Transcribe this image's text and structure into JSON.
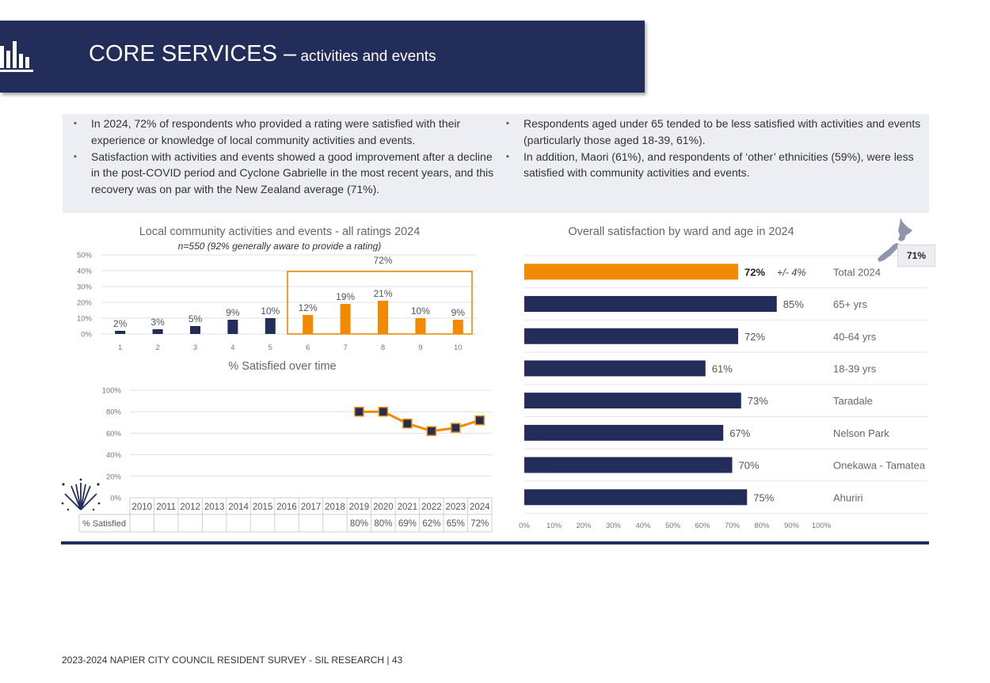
{
  "header": {
    "title_main": "CORE SERVICES –",
    "title_sub": " activities and events",
    "icon": "bar-chart-icon"
  },
  "bullets": {
    "left": [
      "In 2024, 72% of respondents who provided a rating were satisfied with their experience or knowledge of local community activities and events.",
      "Satisfaction with activities and events showed a good improvement after a decline in the post-COVID period and Cyclone Gabrielle in the most recent years, and this recovery was on par with the New Zealand average (71%)."
    ],
    "right": [
      "Respondents aged under 65 tended to be less satisfied with activities and events (particularly those aged 18-39, 61%).",
      "In addition, Maori (61%), and respondents of ‘other’ ethnicities (59%), were less satisfied with community activities and events."
    ]
  },
  "nz_badge": {
    "icon": "new-zealand-map-icon",
    "value": "71%"
  },
  "decoration": {
    "icon": "fireworks-icon"
  },
  "footer": "2023-2024 NAPIER CITY COUNCIL RESIDENT SURVEY - SIL RESEARCH | 43",
  "colors": {
    "navy": "#222d5a",
    "orange": "#f18a00",
    "panel": "#eceef3"
  },
  "chart_data": [
    {
      "type": "bar",
      "title": "Local community activities and events - all ratings 2024",
      "subtitle": "n=550 (92% generally aware to provide a rating)",
      "categories": [
        "1",
        "2",
        "3",
        "4",
        "5",
        "6",
        "7",
        "8",
        "9",
        "10"
      ],
      "values": [
        2,
        3,
        5,
        9,
        10,
        12,
        19,
        21,
        10,
        9
      ],
      "data_labels": [
        "2%",
        "3%",
        "5%",
        "9%",
        "10%",
        "12%",
        "19%",
        "21%",
        "10%",
        "9%"
      ],
      "highlight": {
        "from": "6",
        "to": "10",
        "label": "72%"
      },
      "yticks": [
        "0%",
        "10%",
        "20%",
        "30%",
        "40%",
        "50%"
      ],
      "ylim": [
        0,
        50
      ],
      "grid": true
    },
    {
      "type": "line",
      "title": "% Satisfied over time",
      "x": [
        "2010",
        "2011",
        "2012",
        "2013",
        "2014",
        "2015",
        "2016",
        "2017",
        "2018",
        "2019",
        "2020",
        "2021",
        "2022",
        "2023",
        "2024"
      ],
      "values": [
        null,
        null,
        null,
        null,
        null,
        null,
        null,
        null,
        null,
        80,
        80,
        69,
        62,
        65,
        72
      ],
      "table_row_label": "% Satisfied",
      "table_values": [
        "",
        "",
        "",
        "",
        "",
        "",
        "",
        "",
        "",
        "80%",
        "80%",
        "69%",
        "62%",
        "65%",
        "72%"
      ],
      "yticks": [
        "0%",
        "20%",
        "40%",
        "60%",
        "80%",
        "100%"
      ],
      "ylim": [
        0,
        100
      ],
      "grid": true
    },
    {
      "type": "bar",
      "orientation": "horizontal",
      "title": "Overall satisfaction by ward and age in 2024",
      "categories": [
        "Total 2024",
        "65+ yrs",
        "40-64 yrs",
        "18-39 yrs",
        "Taradale",
        "Nelson Park",
        "Onekawa - Tamatea",
        "Ahuriri"
      ],
      "values": [
        72,
        85,
        72,
        61,
        73,
        67,
        70,
        75
      ],
      "data_labels": [
        "72%",
        "85%",
        "72%",
        "61%",
        "73%",
        "67%",
        "70%",
        "75%"
      ],
      "margin_of_error": "+/- 4%",
      "xticks": [
        "0%",
        "10%",
        "20%",
        "30%",
        "40%",
        "50%",
        "60%",
        "70%",
        "80%",
        "90%",
        "100%"
      ],
      "xlim": [
        0,
        100
      ]
    }
  ]
}
